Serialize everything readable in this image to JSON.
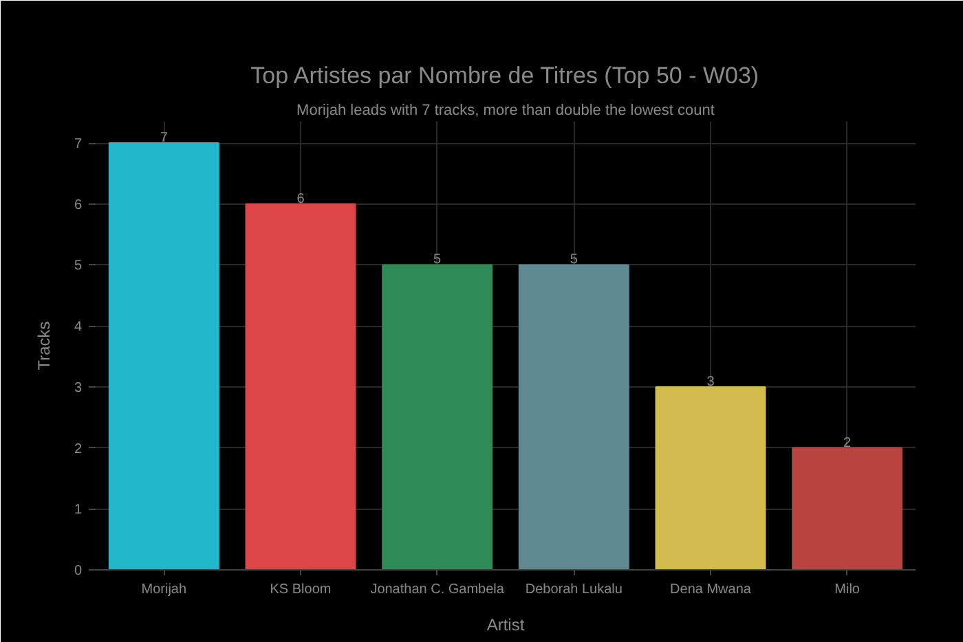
{
  "chart_data": {
    "type": "bar",
    "title": "Top Artistes par Nombre de Titres (Top 50 - W03)",
    "subtitle": "Morijah leads with 7 tracks, more than double the lowest count",
    "xlabel": "Artist",
    "ylabel": "Tracks",
    "categories": [
      "Morijah",
      "KS Bloom",
      "Jonathan C. Gambela",
      "Deborah Lukalu",
      "Dena Mwana",
      "Milo"
    ],
    "values": [
      7,
      6,
      5,
      5,
      3,
      2
    ],
    "colors": [
      "#22b8cc",
      "#dc4648",
      "#2e8b57",
      "#5f8990",
      "#d3bb4e",
      "#b9433e"
    ],
    "ylim": [
      0,
      7.35
    ],
    "yticks": [
      0,
      1,
      2,
      3,
      4,
      5,
      6,
      7
    ],
    "grid": true,
    "data_labels": true
  }
}
